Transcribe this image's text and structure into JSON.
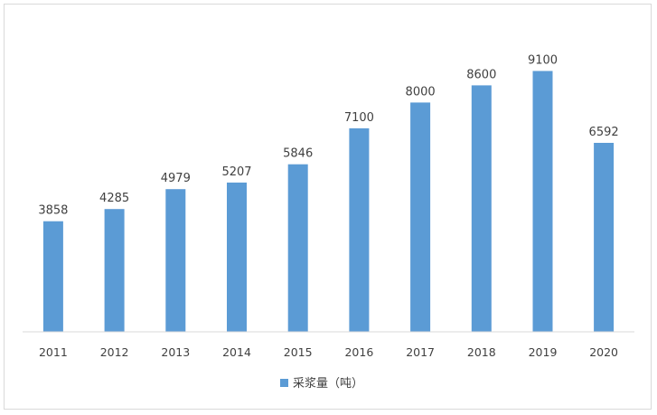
{
  "chart_data": {
    "type": "bar",
    "categories": [
      "2011",
      "2012",
      "2013",
      "2014",
      "2015",
      "2016",
      "2017",
      "2018",
      "2019",
      "2020"
    ],
    "series": [
      {
        "name": "采浆量（吨）",
        "values": [
          3858,
          4285,
          4979,
          5207,
          5846,
          7100,
          8000,
          8600,
          9100,
          6592
        ]
      }
    ],
    "ylim": [
      0,
      10000
    ],
    "grid": false,
    "legend": "bottom-center",
    "data_labels": true,
    "bar_color": "#5b9bd5",
    "axis_color": "#d9d9d9"
  }
}
